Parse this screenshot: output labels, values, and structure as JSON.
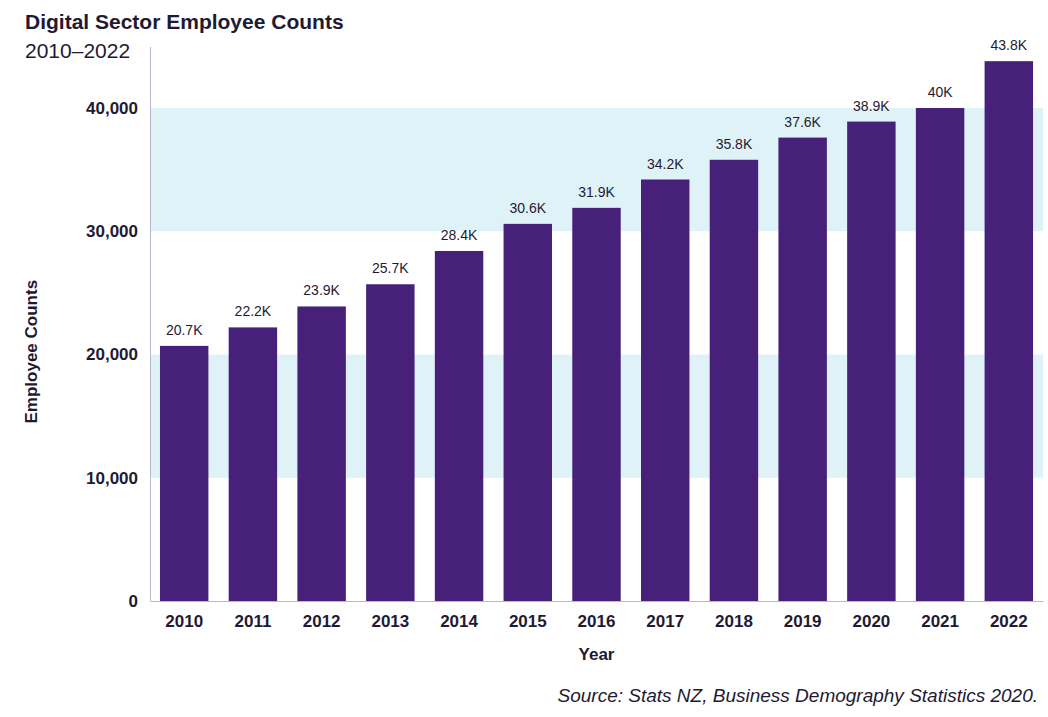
{
  "chart_data": {
    "type": "bar",
    "title": "Digital Sector Employee Counts",
    "subtitle": "2010–2022",
    "x_label": "Year",
    "y_label": "Employee Counts",
    "source": "Source: Stats NZ, Business Demography Statistics 2020.",
    "categories": [
      "2010",
      "2011",
      "2012",
      "2013",
      "2014",
      "2015",
      "2016",
      "2017",
      "2018",
      "2019",
      "2020",
      "2021",
      "2022"
    ],
    "values": [
      20700,
      22200,
      23900,
      25700,
      28400,
      30600,
      31900,
      34200,
      35800,
      37600,
      38900,
      40000,
      43800
    ],
    "value_labels": [
      "20.7K",
      "22.2K",
      "23.9K",
      "25.7K",
      "28.4K",
      "30.6K",
      "31.9K",
      "34.2K",
      "35.8K",
      "37.6K",
      "38.9K",
      "40K",
      "43.8K"
    ],
    "data_labels": true,
    "color": "#47207a",
    "ylim": [
      0,
      45000
    ],
    "yticks": [
      0,
      {
        "value": 10000,
        "label": "10,000"
      },
      {
        "value": 20000,
        "label": "20,000"
      },
      {
        "value": 30000,
        "label": "30,000"
      },
      {
        "value": 40000,
        "label": "40,000"
      }
    ],
    "grid": true
  }
}
